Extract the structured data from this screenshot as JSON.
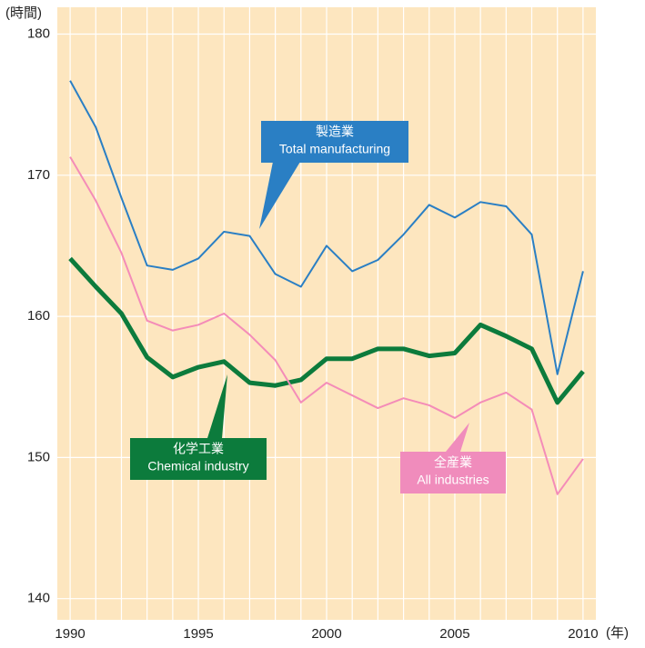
{
  "chart_data": {
    "type": "line",
    "y_unit": "(時間)",
    "x_unit": "(年)",
    "x": [
      1990,
      1991,
      1992,
      1993,
      1994,
      1995,
      1996,
      1997,
      1998,
      1999,
      2000,
      2001,
      2002,
      2003,
      2004,
      2005,
      2006,
      2007,
      2008,
      2009,
      2010
    ],
    "series": [
      {
        "name": "Total manufacturing",
        "color": "#2a7fc4",
        "values": [
          176.7,
          173.4,
          168.4,
          163.6,
          163.3,
          164.1,
          166.0,
          165.7,
          163.0,
          162.1,
          165.0,
          163.2,
          164.0,
          165.8,
          167.9,
          167.0,
          168.1,
          167.8,
          165.8,
          155.9,
          163.2
        ]
      },
      {
        "name": "Chemical industry",
        "color": "#0c7b3c",
        "values": [
          164.1,
          162.1,
          160.2,
          157.1,
          155.7,
          156.4,
          156.8,
          155.3,
          155.1,
          155.5,
          157.0,
          157.0,
          157.7,
          157.7,
          157.2,
          157.4,
          159.4,
          158.6,
          157.7,
          153.9,
          156.1
        ]
      },
      {
        "name": "All industries",
        "color": "#f48cb8",
        "values": [
          171.3,
          168.2,
          164.5,
          159.7,
          159.0,
          159.4,
          160.2,
          158.7,
          156.9,
          153.9,
          155.3,
          154.4,
          153.5,
          154.2,
          153.7,
          152.8,
          153.9,
          154.6,
          153.4,
          147.4,
          149.9
        ]
      }
    ],
    "annotations": [
      {
        "label": "製造業",
        "sublabel": "Total manufacturing",
        "color": "#2a7fc4"
      },
      {
        "label": "化学工業",
        "sublabel": "Chemical industry",
        "color": "#0c7b3c"
      },
      {
        "label": "全産業",
        "sublabel": "All industries",
        "color": "#f08cbc"
      }
    ],
    "xlim": [
      1989.5,
      2010.5
    ],
    "xticks": [
      1990,
      1995,
      2000,
      2005,
      2010
    ],
    "ylim": [
      138.5,
      181.9
    ],
    "yticks": [
      140,
      150,
      160,
      170,
      180
    ],
    "grid": true,
    "background": "#fde6bf"
  }
}
